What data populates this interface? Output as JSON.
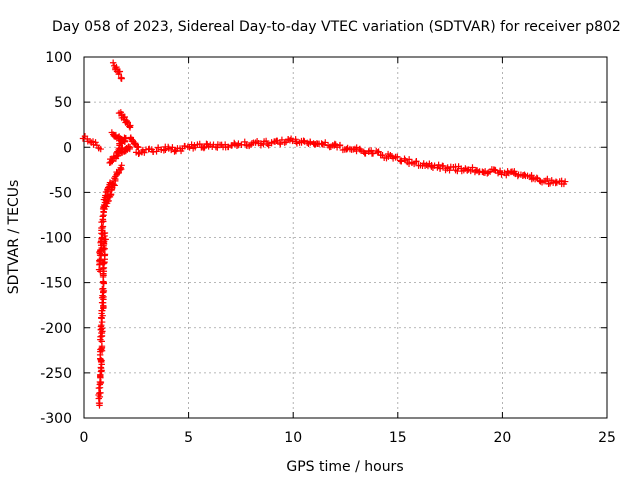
{
  "chart_data": {
    "type": "scatter",
    "title": "Day 058 of 2023, Sidereal Day-to-day VTEC variation (SDTVAR) for receiver p802",
    "xlabel": "GPS time / hours",
    "ylabel": "SDTVAR / TECUs",
    "xlim": [
      0,
      25
    ],
    "ylim": [
      -300,
      100
    ],
    "x_ticks": [
      0,
      5,
      10,
      15,
      20,
      25
    ],
    "y_ticks": [
      100,
      50,
      0,
      -50,
      -100,
      -150,
      -200,
      -250,
      -300
    ],
    "x_tick_labels": [
      "0",
      "5",
      "10",
      "15",
      "20",
      "25"
    ],
    "y_tick_labels": [
      "100",
      "50",
      "0",
      "-50",
      "-100",
      "-150",
      "-200",
      "-250",
      "-300"
    ],
    "grid": true,
    "marker": "+",
    "color": "#ff0000",
    "series": [
      {
        "name": "SDTVAR",
        "segments": [
          {
            "x": [
              0.0,
              0.2,
              0.4,
              0.6,
              0.8
            ],
            "y": [
              12,
              8,
              5,
              2,
              -2
            ]
          },
          {
            "x": [
              0.7,
              0.75,
              0.8,
              0.82,
              0.85,
              0.88,
              0.9,
              0.92,
              0.95,
              0.98,
              1.0
            ],
            "y": [
              -285,
              -270,
              -250,
              -220,
              -200,
              -180,
              -160,
              -140,
              -125,
              -110,
              -95
            ]
          },
          {
            "x": [
              0.75,
              0.8,
              0.85,
              0.9,
              0.95,
              1.0,
              1.05,
              1.1,
              1.15,
              1.2,
              1.3
            ],
            "y": [
              -135,
              -110,
              -90,
              -75,
              -65,
              -60,
              -55,
              -50,
              -45,
              -42,
              -40
            ]
          },
          {
            "x": [
              1.0,
              1.1,
              1.2,
              1.3,
              1.4,
              1.5,
              1.6,
              1.7,
              1.8
            ],
            "y": [
              -68,
              -62,
              -55,
              -48,
              -42,
              -35,
              -30,
              -25,
              -20
            ]
          },
          {
            "x": [
              1.5,
              1.6,
              1.7,
              1.8,
              1.9,
              2.0
            ],
            "y": [
              -10,
              -5,
              0,
              5,
              8,
              10
            ]
          },
          {
            "x": [
              1.2,
              1.3,
              1.4,
              1.5,
              1.6,
              1.7,
              1.8,
              1.9,
              2.0,
              2.1,
              2.2
            ],
            "y": [
              -20,
              -15,
              -12,
              -9,
              -7,
              -6,
              -4,
              -3,
              -2,
              -1,
              0
            ]
          },
          {
            "x": [
              1.35,
              1.45,
              1.55,
              1.65,
              1.75,
              1.85,
              1.95
            ],
            "y": [
              15,
              13,
              11,
              10,
              9,
              7,
              6
            ]
          },
          {
            "x": [
              1.4,
              1.5,
              1.6,
              1.7,
              1.8
            ],
            "y": [
              92,
              88,
              84,
              80,
              76
            ]
          },
          {
            "x": [
              1.7,
              1.8,
              1.9,
              2.0,
              2.1,
              2.2
            ],
            "y": [
              38,
              35,
              32,
              29,
              25,
              22
            ]
          },
          {
            "x": [
              2.2,
              2.3,
              2.4,
              2.5,
              2.6
            ],
            "y": [
              12,
              8,
              5,
              2,
              0
            ]
          },
          {
            "x": [
              2.5,
              3.0,
              3.5,
              4.0,
              4.5,
              5.0,
              5.5,
              6.0,
              6.5,
              7.0,
              7.5,
              8.0,
              8.5,
              9.0,
              9.5,
              10.0,
              10.5,
              11.0,
              11.5,
              12.0,
              12.5,
              13.0,
              13.5,
              14.0,
              14.5,
              15.0,
              15.5,
              16.0,
              16.5,
              17.0,
              17.5,
              18.0,
              18.5,
              19.0,
              19.5,
              20.0,
              20.5,
              21.0,
              21.5,
              22.0,
              22.5,
              23.0
            ],
            "y": [
              -5,
              -4,
              -3,
              -2,
              -2,
              0,
              1,
              1,
              2,
              3,
              3,
              4,
              4,
              5,
              6,
              7,
              6,
              5,
              3,
              1,
              -1,
              -3,
              -5,
              -7,
              -10,
              -13,
              -16,
              -18,
              -20,
              -22,
              -23,
              -24,
              -25,
              -26,
              -27,
              -28,
              -29,
              -31,
              -34,
              -37,
              -40,
              -38
            ]
          }
        ]
      }
    ]
  }
}
